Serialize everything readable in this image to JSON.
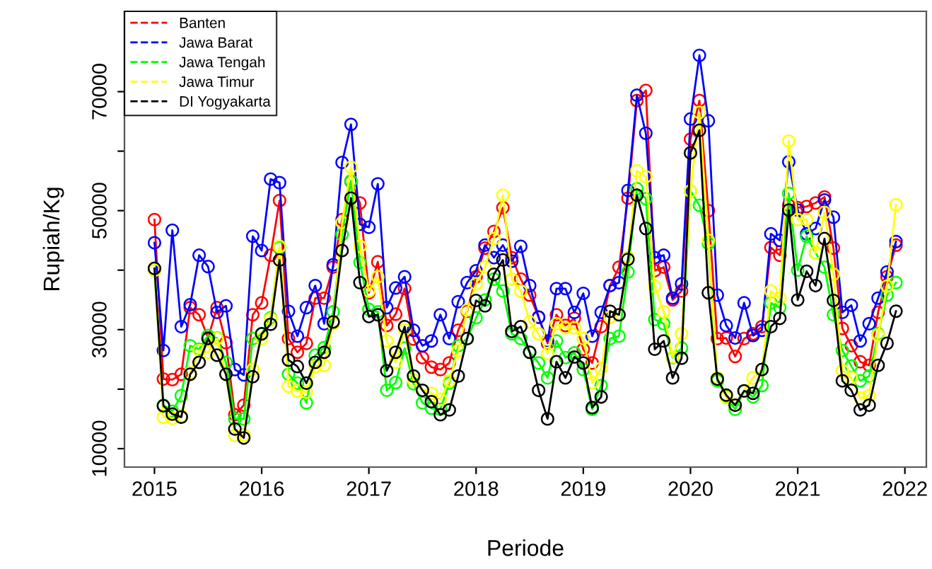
{
  "chart_data": {
    "type": "line",
    "xlabel": "Periode",
    "ylabel": "Rupiah/Kg",
    "x": [
      2015,
      2015.0833,
      2015.1667,
      2015.25,
      2015.3333,
      2015.4167,
      2015.5,
      2015.5833,
      2015.6667,
      2015.75,
      2015.8333,
      2015.9167,
      2016,
      2016.0833,
      2016.1667,
      2016.25,
      2016.3333,
      2016.4167,
      2016.5,
      2016.5833,
      2016.6667,
      2016.75,
      2016.8333,
      2016.9167,
      2017,
      2017.0833,
      2017.1667,
      2017.25,
      2017.3333,
      2017.4167,
      2017.5,
      2017.5833,
      2017.6667,
      2017.75,
      2017.8333,
      2017.9167,
      2018,
      2018.0833,
      2018.1667,
      2018.25,
      2018.3333,
      2018.4167,
      2018.5,
      2018.5833,
      2018.6667,
      2018.75,
      2018.8333,
      2018.9167,
      2019,
      2019.0833,
      2019.1667,
      2019.25,
      2019.3333,
      2019.4167,
      2019.5,
      2019.5833,
      2019.6667,
      2019.75,
      2019.8333,
      2019.9167,
      2020,
      2020.0833,
      2020.1667,
      2020.25,
      2020.3333,
      2020.4167,
      2020.5,
      2020.5833,
      2020.6667,
      2020.75,
      2020.8333,
      2020.9167,
      2021,
      2021.0833,
      2021.1667,
      2021.25,
      2021.3333,
      2021.4167,
      2021.5,
      2021.5833,
      2021.6667,
      2021.75,
      2021.8333,
      2021.9167
    ],
    "series": [
      {
        "name": "Banten",
        "color": "#ff0000",
        "values": [
          48500,
          21700,
          21600,
          22500,
          33700,
          32500,
          28600,
          33700,
          27800,
          15700,
          17300,
          32500,
          34500,
          42500,
          51700,
          28500,
          26200,
          27700,
          35300,
          35300,
          40500,
          48500,
          54900,
          51300,
          36200,
          41400,
          30700,
          32600,
          36900,
          28400,
          25300,
          23700,
          23300,
          24400,
          29900,
          33100,
          38900,
          43700,
          46500,
          50500,
          42100,
          38500,
          35800,
          32100,
          27700,
          32500,
          30700,
          31900,
          26700,
          24400,
          30500,
          37400,
          40500,
          52100,
          68500,
          70200,
          39900,
          40500,
          35000,
          36500,
          62000,
          68500,
          50000,
          28500,
          28600,
          25500,
          28500,
          29300,
          30500,
          43800,
          42500,
          50900,
          50500,
          50700,
          51300,
          52300,
          43700,
          30200,
          27300,
          24600,
          24000,
          32900,
          38900,
          44200
        ]
      },
      {
        "name": "Jawa Barat",
        "color": "#0000ff",
        "values": [
          44600,
          26500,
          46700,
          30500,
          34200,
          42500,
          40600,
          32900,
          34000,
          23300,
          22400,
          45700,
          43300,
          55300,
          54700,
          33100,
          28900,
          33700,
          37400,
          31000,
          40900,
          58100,
          64500,
          47700,
          47200,
          54500,
          33700,
          37000,
          38900,
          29900,
          27300,
          28100,
          32500,
          28500,
          34700,
          37900,
          39900,
          44200,
          42100,
          44200,
          41500,
          44000,
          37400,
          32100,
          28100,
          36900,
          36900,
          32900,
          36100,
          28900,
          32900,
          37400,
          37900,
          53400,
          69400,
          63000,
          42100,
          42500,
          35300,
          37700,
          65400,
          76100,
          65100,
          35800,
          30700,
          28600,
          34500,
          29000,
          29900,
          46100,
          45000,
          58200,
          50100,
          46100,
          47000,
          51800,
          48900,
          32900,
          34100,
          28100,
          31000,
          35300,
          39700,
          44800
        ]
      },
      {
        "name": "Jawa Tengah",
        "color": "#00ff00",
        "values": [
          40000,
          17300,
          16300,
          18900,
          27300,
          26700,
          29000,
          28600,
          24500,
          15000,
          15000,
          28500,
          29300,
          32000,
          43800,
          22500,
          21000,
          17700,
          25700,
          27000,
          33000,
          46000,
          55000,
          41300,
          33400,
          33000,
          19800,
          21100,
          26900,
          20900,
          17700,
          16800,
          16600,
          21000,
          27300,
          28500,
          32000,
          35000,
          38500,
          36500,
          29300,
          28500,
          26200,
          24400,
          21900,
          28100,
          25300,
          26100,
          23300,
          16600,
          20600,
          28500,
          28900,
          39700,
          53700,
          52000,
          31700,
          31000,
          25300,
          26900,
          53300,
          50900,
          44500,
          21400,
          18800,
          16600,
          19700,
          18700,
          20600,
          34500,
          33700,
          52900,
          40000,
          45700,
          42900,
          40500,
          32500,
          26500,
          23900,
          21400,
          22200,
          29300,
          35800,
          37900
        ]
      },
      {
        "name": "Jawa Timur",
        "color": "#ffff00",
        "values": [
          40000,
          15300,
          15100,
          15500,
          22700,
          26500,
          26200,
          28500,
          22500,
          12200,
          12300,
          23300,
          28500,
          31800,
          44000,
          20500,
          19700,
          19500,
          23800,
          24000,
          31000,
          48000,
          57300,
          44000,
          36500,
          38900,
          28100,
          24500,
          30000,
          21500,
          19800,
          19300,
          18300,
          21400,
          26500,
          33300,
          37700,
          40500,
          45300,
          52600,
          38500,
          36500,
          31300,
          29300,
          26000,
          31000,
          30300,
          30300,
          28500,
          21100,
          23500,
          32100,
          32500,
          42100,
          56700,
          55700,
          37300,
          33000,
          25400,
          29300,
          53300,
          66500,
          45000,
          21900,
          18600,
          17300,
          19700,
          21900,
          23300,
          36500,
          35300,
          61700,
          48500,
          48500,
          42900,
          49700,
          39300,
          23100,
          21900,
          18500,
          18900,
          29100,
          37300,
          51000
        ]
      },
      {
        "name": "DI Yogyakarta",
        "color": "#000000",
        "values": [
          40300,
          17200,
          15800,
          15300,
          22500,
          24500,
          28500,
          25700,
          22500,
          13300,
          11800,
          22100,
          29300,
          30900,
          41700,
          24900,
          23800,
          21000,
          24500,
          26200,
          31300,
          43300,
          52100,
          37900,
          32200,
          32500,
          23100,
          26200,
          30500,
          22200,
          19800,
          17900,
          15700,
          16500,
          22200,
          28500,
          34900,
          34000,
          39300,
          41700,
          29700,
          30500,
          26200,
          19800,
          15000,
          24600,
          21900,
          25400,
          24400,
          16900,
          18700,
          33100,
          32500,
          41800,
          52600,
          47000,
          26700,
          28100,
          21900,
          25200,
          59700,
          63500,
          36200,
          21700,
          19000,
          17300,
          19700,
          19300,
          23300,
          30500,
          31900,
          50100,
          35000,
          39800,
          37400,
          45300,
          34900,
          21400,
          19800,
          16500,
          17300,
          24000,
          27700,
          33100
        ]
      }
    ],
    "xlim": [
      2014.72,
      2022.2
    ],
    "xticks": [
      2015,
      2016,
      2017,
      2018,
      2019,
      2020,
      2021,
      2022
    ],
    "ylim": [
      6900,
      83500
    ],
    "yticks": [
      10000,
      {
        "value": 20000,
        "label": null
      },
      30000,
      {
        "value": 40000,
        "label": null
      },
      50000,
      {
        "value": 60000,
        "label": null
      },
      70000
    ],
    "grid": false,
    "legend": "top left",
    "marker": "circle",
    "line_style": "solid"
  }
}
